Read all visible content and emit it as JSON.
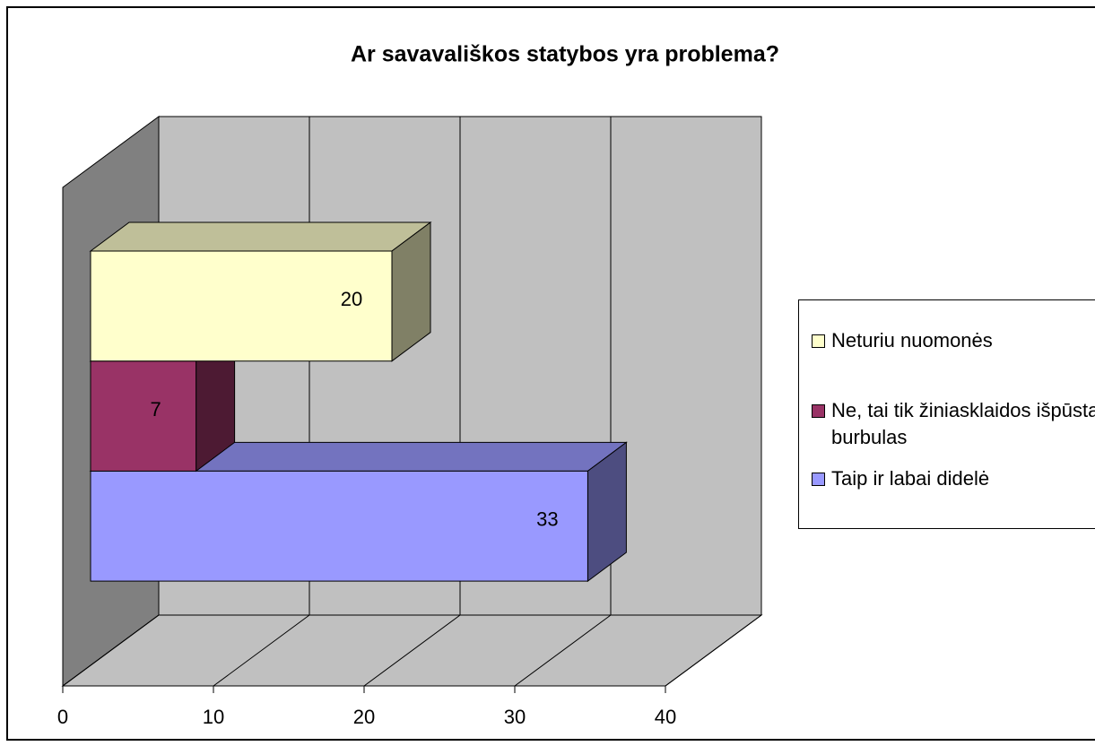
{
  "chart_data": {
    "type": "bar3d_horizontal",
    "title": "Ar savavališkos statybos yra problema?",
    "series": [
      {
        "name": "Neturiu nuomonės",
        "color": "#FFFFCC",
        "values": [
          20
        ]
      },
      {
        "name": "Ne, tai tik žiniasklaidos išpūstas burbulas",
        "color": "#993366",
        "values": [
          7
        ]
      },
      {
        "name": "Taip ir labai didelė",
        "color": "#9999FF",
        "values": [
          33
        ]
      }
    ],
    "xlim": [
      0,
      40
    ],
    "xticks": [
      0,
      10,
      20,
      30,
      40
    ],
    "grid": true,
    "legend": "right"
  }
}
